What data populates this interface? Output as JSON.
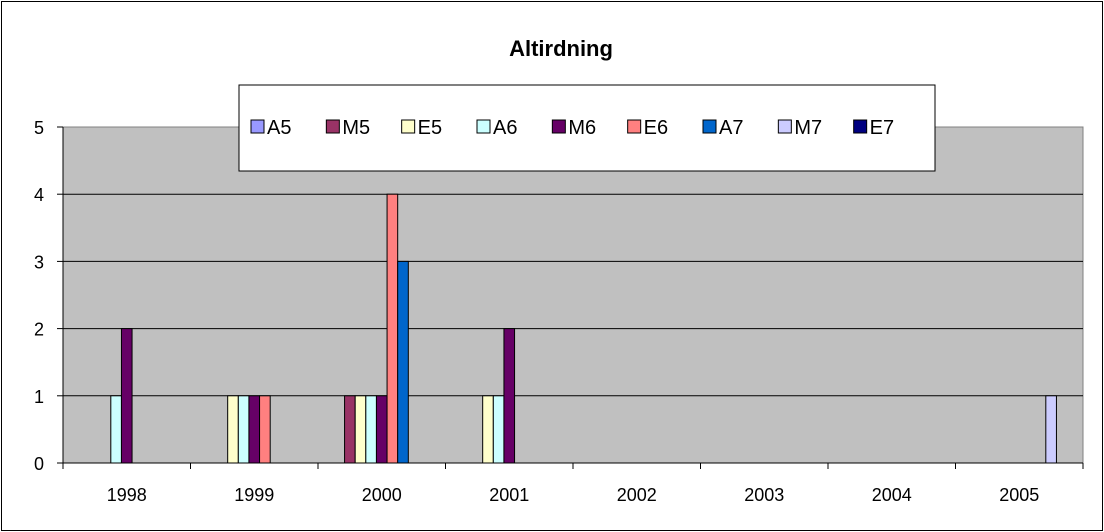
{
  "chart_data": {
    "type": "bar",
    "title": "Altirdning",
    "xlabel": "",
    "ylabel": "",
    "ylim": [
      0,
      5
    ],
    "yticks": [
      0,
      1,
      2,
      3,
      4,
      5
    ],
    "grid": true,
    "legend_position": "top",
    "plot_background": "#c0c0c0",
    "categories": [
      "1998",
      "1999",
      "2000",
      "2001",
      "2002",
      "2003",
      "2004",
      "2005"
    ],
    "series": [
      {
        "name": "A5",
        "color": "#9999ff",
        "values": [
          0,
          0,
          0,
          0,
          0,
          0,
          0,
          0
        ]
      },
      {
        "name": "M5",
        "color": "#993366",
        "values": [
          0,
          0,
          1,
          0,
          0,
          0,
          0,
          0
        ]
      },
      {
        "name": "E5",
        "color": "#ffffcc",
        "values": [
          0,
          1,
          1,
          1,
          0,
          0,
          0,
          0
        ]
      },
      {
        "name": "A6",
        "color": "#ccffff",
        "values": [
          1,
          1,
          1,
          1,
          0,
          0,
          0,
          0
        ]
      },
      {
        "name": "M6",
        "color": "#660066",
        "values": [
          2,
          1,
          1,
          2,
          0,
          0,
          0,
          0
        ]
      },
      {
        "name": "E6",
        "color": "#ff8080",
        "values": [
          0,
          1,
          4,
          0,
          0,
          0,
          0,
          0
        ]
      },
      {
        "name": "A7",
        "color": "#0066cc",
        "values": [
          0,
          0,
          3,
          0,
          0,
          0,
          0,
          0
        ]
      },
      {
        "name": "M7",
        "color": "#ccccff",
        "values": [
          0,
          0,
          0,
          0,
          0,
          0,
          0,
          1
        ]
      },
      {
        "name": "E7",
        "color": "#000080",
        "values": [
          0,
          0,
          0,
          0,
          0,
          0,
          0,
          0
        ]
      }
    ]
  }
}
